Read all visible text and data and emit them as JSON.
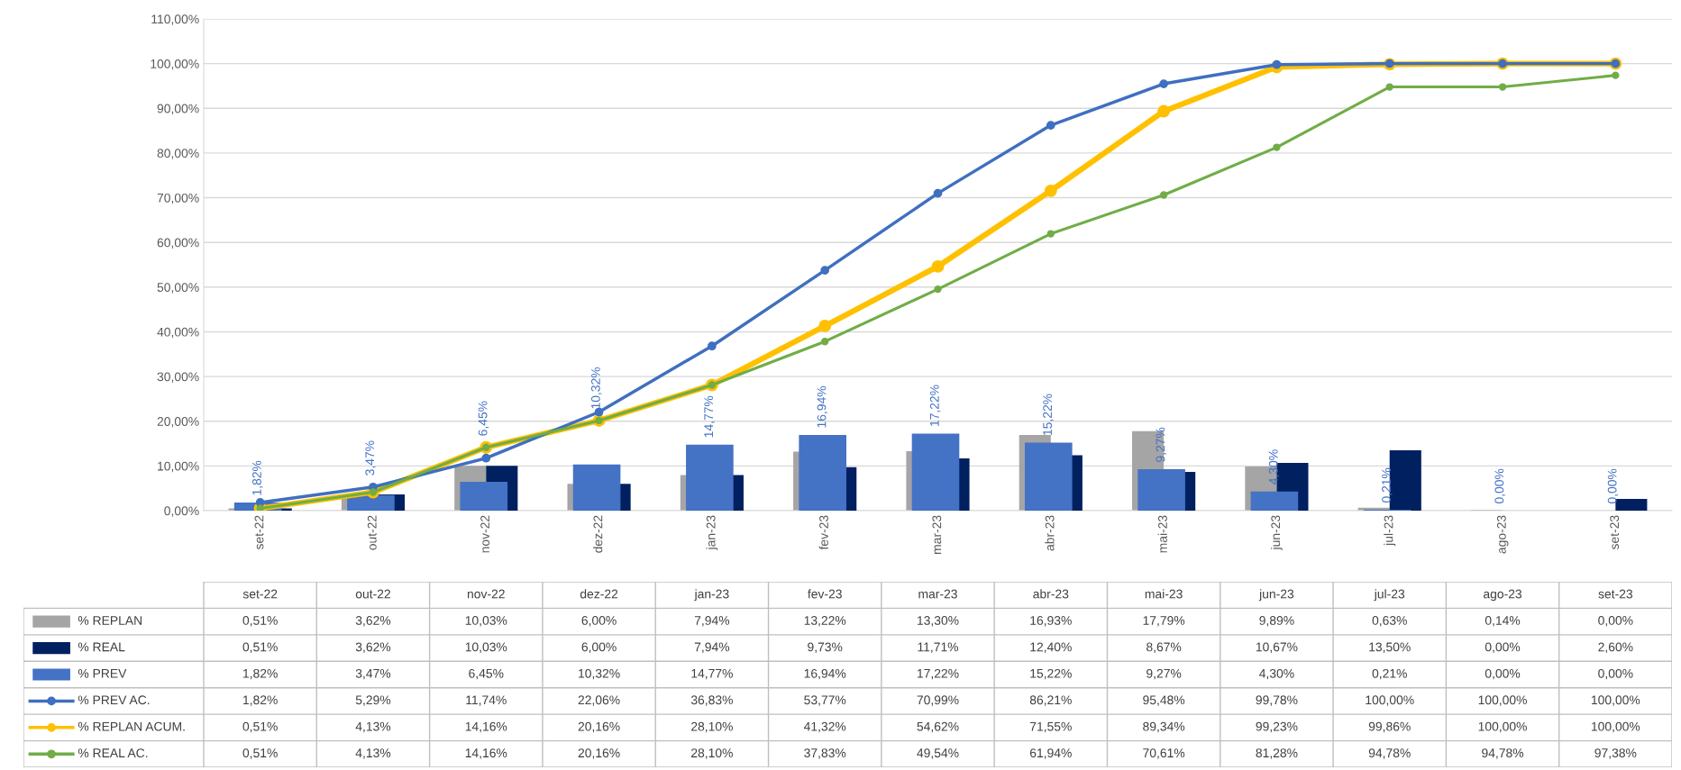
{
  "chart_data": {
    "type": "bar",
    "categories": [
      "set-22",
      "out-22",
      "nov-22",
      "dez-22",
      "jan-23",
      "fev-23",
      "mar-23",
      "abr-23",
      "mai-23",
      "jun-23",
      "jul-23",
      "ago-23",
      "set-23"
    ],
    "series": [
      {
        "name": "% REPLAN",
        "color": "#a5a5a5",
        "values": [
          0.51,
          3.62,
          10.03,
          6.0,
          7.94,
          13.22,
          13.3,
          16.93,
          17.79,
          9.89,
          0.63,
          0.14,
          0.0
        ],
        "value_labels": [
          "0,51%",
          "3,62%",
          "10,03%",
          "6,00%",
          "7,94%",
          "13,22%",
          "13,30%",
          "16,93%",
          "17,79%",
          "9,89%",
          "0,63%",
          "0,14%",
          "0,00%"
        ]
      },
      {
        "name": "% REAL",
        "color": "#002060",
        "values": [
          0.51,
          3.62,
          10.03,
          6.0,
          7.94,
          9.73,
          11.71,
          12.4,
          8.67,
          10.67,
          13.5,
          0.0,
          2.6
        ],
        "value_labels": [
          "0,51%",
          "3,62%",
          "10,03%",
          "6,00%",
          "7,94%",
          "9,73%",
          "11,71%",
          "12,40%",
          "8,67%",
          "10,67%",
          "13,50%",
          "0,00%",
          "2,60%"
        ]
      },
      {
        "name": "% PREV",
        "color": "#4472c4",
        "data_labels": true,
        "values": [
          1.82,
          3.47,
          6.45,
          10.32,
          14.77,
          16.94,
          17.22,
          15.22,
          9.27,
          4.3,
          0.21,
          0.0,
          0.0
        ],
        "value_labels": [
          "1,82%",
          "3,47%",
          "6,45%",
          "10,32%",
          "14,77%",
          "16,94%",
          "17,22%",
          "15,22%",
          "9,27%",
          "4,30%",
          "0,21%",
          "0,00%",
          "0,00%"
        ]
      },
      {
        "name": "% PREV AC.",
        "type": "line",
        "color": "#3f6fc0",
        "values": [
          1.82,
          5.29,
          11.74,
          22.06,
          36.83,
          53.77,
          70.99,
          86.21,
          95.48,
          99.78,
          100.0,
          100.0,
          100.0
        ],
        "value_labels": [
          "1,82%",
          "5,29%",
          "11,74%",
          "22,06%",
          "36,83%",
          "53,77%",
          "70,99%",
          "86,21%",
          "95,48%",
          "99,78%",
          "100,00%",
          "100,00%",
          "100,00%"
        ]
      },
      {
        "name": "% REPLAN ACUM.",
        "type": "line",
        "color": "#ffc000",
        "values": [
          0.51,
          4.13,
          14.16,
          20.16,
          28.1,
          41.32,
          54.62,
          71.55,
          89.34,
          99.23,
          99.86,
          100.0,
          100.0
        ],
        "value_labels": [
          "0,51%",
          "4,13%",
          "14,16%",
          "20,16%",
          "28,10%",
          "41,32%",
          "54,62%",
          "71,55%",
          "89,34%",
          "99,23%",
          "99,86%",
          "100,00%",
          "100,00%"
        ]
      },
      {
        "name": "% REAL AC.",
        "type": "line",
        "color": "#70ad47",
        "values": [
          0.51,
          4.13,
          14.16,
          20.16,
          28.1,
          37.83,
          49.54,
          61.94,
          70.61,
          81.28,
          94.78,
          94.78,
          97.38
        ],
        "value_labels": [
          "0,51%",
          "4,13%",
          "14,16%",
          "20,16%",
          "28,10%",
          "37,83%",
          "49,54%",
          "61,94%",
          "70,61%",
          "81,28%",
          "94,78%",
          "94,78%",
          "97,38%"
        ]
      }
    ],
    "ylim": [
      0,
      110
    ],
    "yticks": [
      {
        "value": 0,
        "label": "0,00%"
      },
      {
        "value": 10,
        "label": "10,00%"
      },
      {
        "value": 20,
        "label": "20,00%"
      },
      {
        "value": 30,
        "label": "30,00%"
      },
      {
        "value": 40,
        "label": "40,00%"
      },
      {
        "value": 50,
        "label": "50,00%"
      },
      {
        "value": 60,
        "label": "60,00%"
      },
      {
        "value": 70,
        "label": "70,00%"
      },
      {
        "value": 80,
        "label": "80,00%"
      },
      {
        "value": 90,
        "label": "90,00%"
      },
      {
        "value": 100,
        "label": "100,00%"
      },
      {
        "value": 110,
        "label": "110,00%"
      }
    ],
    "grid": "y",
    "legend": "bottom",
    "marker": "circle",
    "line_style": "solid",
    "data_labels": true
  }
}
